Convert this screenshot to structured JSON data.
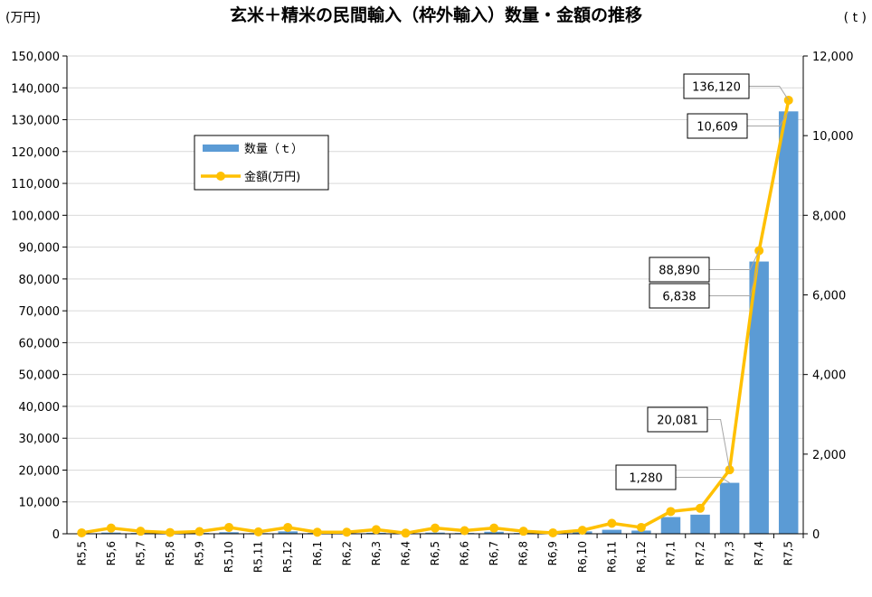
{
  "title": "玄米＋精米の民間輸入（枠外輸入）数量・金額の推移",
  "left_unit": "(万円)",
  "right_unit": "( t )",
  "legend": {
    "quantity": "数量（ｔ）",
    "amount": "金額(万円)"
  },
  "colors": {
    "bar": "#5B9BD5",
    "line": "#FFC000",
    "grid": "#D9D9D9",
    "axis": "#000000"
  },
  "chart_data": {
    "type": "bar",
    "categories": [
      "R5.5",
      "R5.6",
      "R5.7",
      "R5.8",
      "R5.9",
      "R5.10",
      "R5.11",
      "R5.12",
      "R6.1",
      "R6.2",
      "R6.3",
      "R6.4",
      "R6.5",
      "R6.6",
      "R6.7",
      "R6.8",
      "R6.9",
      "R6.10",
      "R6.11",
      "R6.12",
      "R7.1",
      "R7.2",
      "R7.3",
      "R7.4",
      "R7.5"
    ],
    "series": [
      {
        "name": "数量（ｔ）",
        "type": "bar",
        "axis": "right",
        "values": [
          10,
          30,
          20,
          15,
          20,
          40,
          15,
          60,
          20,
          15,
          25,
          10,
          30,
          20,
          50,
          20,
          15,
          60,
          100,
          80,
          420,
          480,
          1280,
          6838,
          10609
        ]
      },
      {
        "name": "金額(万円)",
        "type": "line",
        "axis": "left",
        "values": [
          300,
          1800,
          800,
          400,
          700,
          2000,
          600,
          2000,
          500,
          500,
          1300,
          200,
          1800,
          1000,
          1800,
          800,
          300,
          1100,
          3300,
          2000,
          7000,
          8000,
          20081,
          88890,
          136120
        ]
      }
    ],
    "left_axis": {
      "min": 0,
      "max": 150000,
      "step": 10000,
      "ticks": [
        "0",
        "10,000",
        "20,000",
        "30,000",
        "40,000",
        "50,000",
        "60,000",
        "70,000",
        "80,000",
        "90,000",
        "100,000",
        "110,000",
        "120,000",
        "130,000",
        "140,000",
        "150,000"
      ]
    },
    "right_axis": {
      "min": 0,
      "max": 12000,
      "step": 2000,
      "ticks": [
        "0",
        "2,000",
        "4,000",
        "6,000",
        "8,000",
        "10,000",
        "12,000"
      ]
    },
    "xtick_labels": [
      "R5,5",
      "R5,6",
      "R5,7",
      "R5,8",
      "R5,9",
      "R5,10",
      "R5,11",
      "R5,12",
      "R6,1",
      "R6,2",
      "R6,3",
      "R6,4",
      "R6,5",
      "R6,6",
      "R6,7",
      "R6,8",
      "R6,9",
      "R6,10",
      "R6,11",
      "R6,12",
      "R7,1",
      "R7,2",
      "R7,3",
      "R7,4",
      "R7,5"
    ],
    "grid": true,
    "callouts": [
      {
        "text": "1,280",
        "series": "quantity",
        "index": 22
      },
      {
        "text": "20,081",
        "series": "amount",
        "index": 22
      },
      {
        "text": "6,838",
        "series": "quantity",
        "index": 23
      },
      {
        "text": "88,890",
        "series": "amount",
        "index": 23
      },
      {
        "text": "10,609",
        "series": "quantity",
        "index": 24
      },
      {
        "text": "136,120",
        "series": "amount",
        "index": 24
      }
    ]
  }
}
